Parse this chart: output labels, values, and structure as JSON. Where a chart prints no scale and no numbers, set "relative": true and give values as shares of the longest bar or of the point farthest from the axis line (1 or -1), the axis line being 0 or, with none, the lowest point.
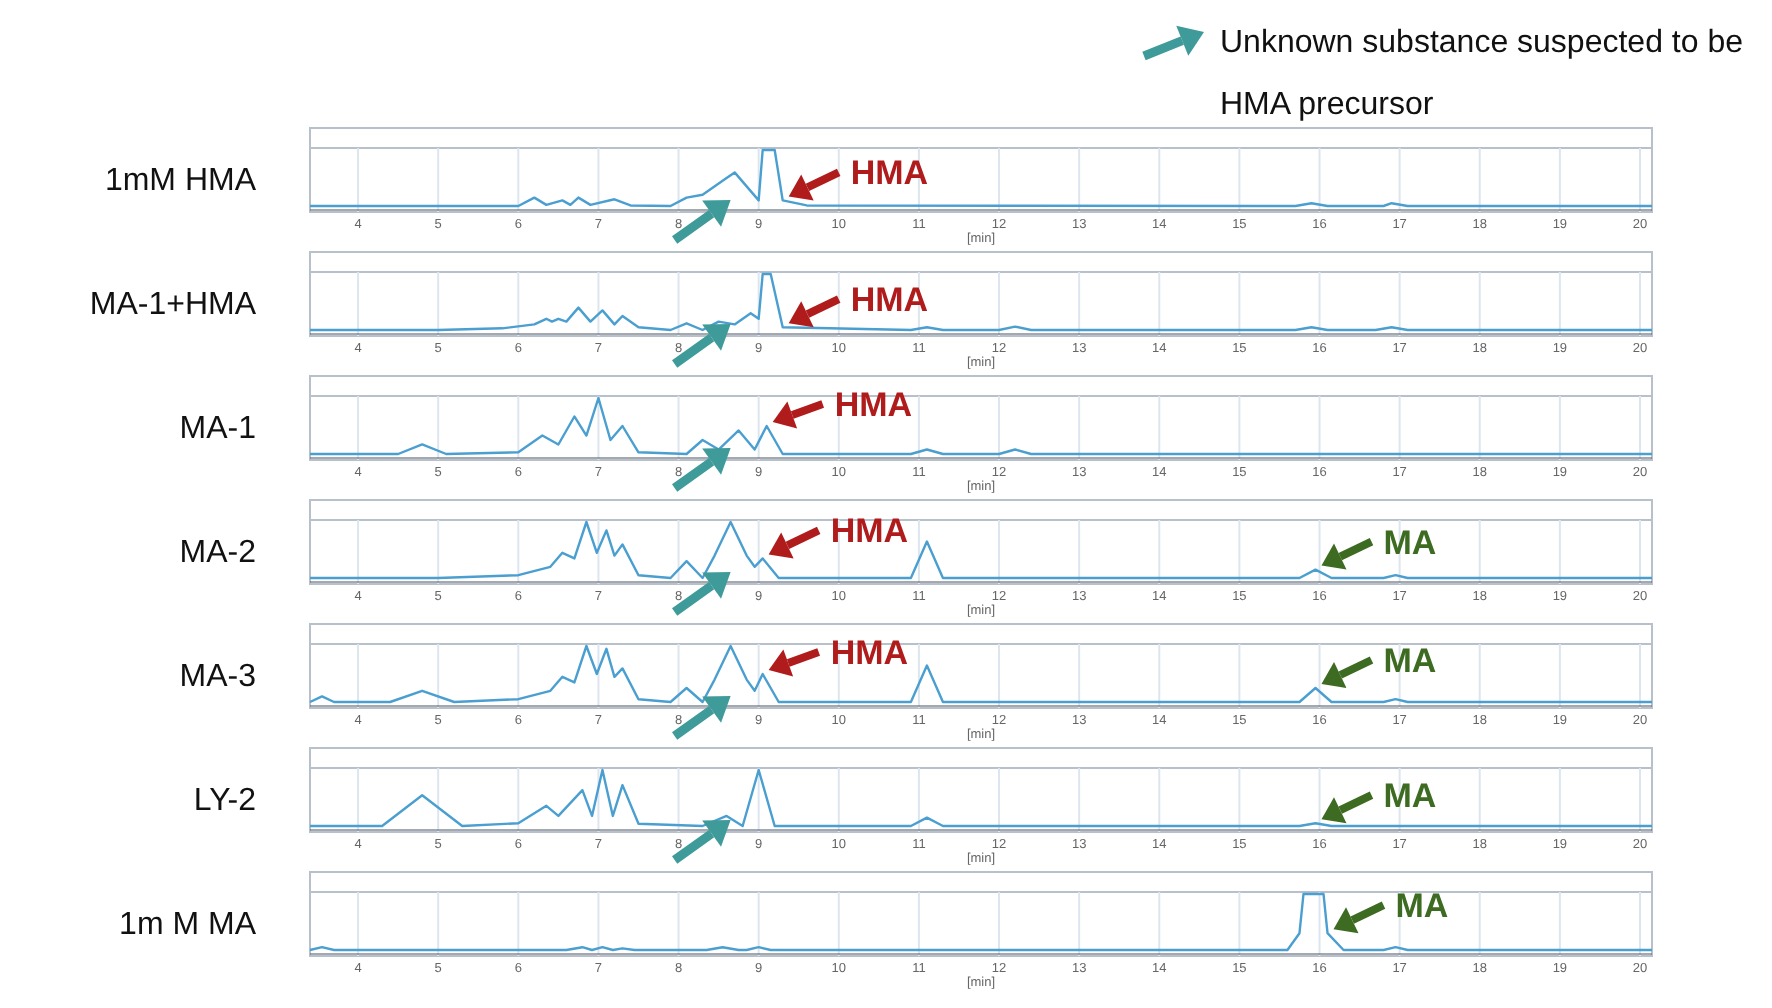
{
  "chart_data": [
    {
      "type": "line",
      "ylabel": "1mM HMA",
      "xlabel": "[min]",
      "relative": true,
      "xlim": [
        3.4,
        20.15
      ],
      "xticks": [
        4,
        5,
        6,
        7,
        8,
        9,
        10,
        11,
        12,
        13,
        14,
        15,
        16,
        17,
        18,
        19,
        20
      ],
      "grid": "x",
      "annotations": [
        "Unknown substance suspected to be HMA precursor",
        {
          "text": "HMA",
          "x": 9.3,
          "y": 0.1
        }
      ],
      "series": [
        {
          "color": "#4a9fd0",
          "x": [
            3.4,
            6.0,
            6.2,
            6.35,
            6.55,
            6.65,
            6.75,
            6.9,
            7.2,
            7.4,
            7.9,
            8.1,
            8.3,
            8.55,
            8.7,
            8.85,
            9.0,
            9.05,
            9.2,
            9.3,
            9.6,
            15.7,
            15.9,
            16.1,
            16.8,
            16.9,
            17.1,
            20.15
          ],
          "values": [
            0,
            0,
            0.15,
            0.02,
            0.1,
            0.02,
            0.15,
            0.02,
            0.12,
            0.01,
            0,
            0.15,
            0.2,
            0.45,
            0.6,
            0.35,
            0.1,
            1,
            1,
            0.1,
            0.01,
            0,
            0.05,
            0,
            0,
            0.05,
            0,
            0
          ]
        }
      ]
    },
    {
      "type": "line",
      "ylabel": "MA-1+HMA",
      "xlabel": "[min]",
      "relative": true,
      "xlim": [
        3.4,
        20.15
      ],
      "xticks": [
        4,
        5,
        6,
        7,
        8,
        9,
        10,
        11,
        12,
        13,
        14,
        15,
        16,
        17,
        18,
        19,
        20
      ],
      "grid": "x",
      "annotations": [
        {
          "text": "HMA",
          "x": 9.3,
          "y": 0.05
        }
      ],
      "series": [
        {
          "color": "#4a9fd0",
          "x": [
            3.4,
            5.0,
            5.8,
            6.2,
            6.35,
            6.42,
            6.5,
            6.6,
            6.75,
            6.9,
            7.05,
            7.2,
            7.3,
            7.5,
            7.9,
            8.1,
            8.3,
            8.5,
            8.7,
            8.9,
            9.0,
            9.05,
            9.15,
            9.3,
            10.9,
            11.1,
            11.3,
            12.0,
            12.2,
            12.4,
            15.7,
            15.9,
            16.1,
            16.7,
            16.9,
            17.1,
            20.15
          ],
          "values": [
            0,
            0,
            0.03,
            0.1,
            0.2,
            0.15,
            0.2,
            0.15,
            0.4,
            0.15,
            0.35,
            0.1,
            0.25,
            0.05,
            0,
            0.12,
            0,
            0.15,
            0.1,
            0.3,
            0.2,
            1,
            1,
            0.05,
            0,
            0.05,
            0,
            0,
            0.06,
            0,
            0,
            0.05,
            0,
            0,
            0.05,
            0,
            0
          ]
        }
      ]
    },
    {
      "type": "line",
      "ylabel": "MA-1",
      "xlabel": "[min]",
      "relative": true,
      "xlim": [
        3.4,
        20.15
      ],
      "xticks": [
        4,
        5,
        6,
        7,
        8,
        9,
        10,
        11,
        12,
        13,
        14,
        15,
        16,
        17,
        18,
        19,
        20
      ],
      "grid": "x",
      "annotations": [
        {
          "text": "HMA",
          "x": 9.1,
          "y": 0.5
        }
      ],
      "series": [
        {
          "color": "#4a9fd0",
          "x": [
            3.4,
            4.5,
            4.8,
            5.1,
            6.0,
            6.3,
            6.5,
            6.7,
            6.85,
            7.0,
            7.15,
            7.3,
            7.5,
            8.1,
            8.3,
            8.5,
            8.75,
            8.95,
            9.1,
            9.3,
            10.9,
            11.1,
            11.3,
            12.0,
            12.2,
            12.4,
            20.15
          ],
          "values": [
            0,
            0,
            0.17,
            0,
            0.03,
            0.33,
            0.17,
            0.67,
            0.33,
            1,
            0.25,
            0.5,
            0.03,
            0,
            0.25,
            0.08,
            0.42,
            0.08,
            0.5,
            0,
            0,
            0.08,
            0,
            0,
            0.08,
            0,
            0
          ]
        }
      ]
    },
    {
      "type": "line",
      "ylabel": "MA-2",
      "xlabel": "[min]",
      "relative": true,
      "xlim": [
        3.4,
        20.15
      ],
      "xticks": [
        4,
        5,
        6,
        7,
        8,
        9,
        10,
        11,
        12,
        13,
        14,
        15,
        16,
        17,
        18,
        19,
        20
      ],
      "grid": "x",
      "annotations": [
        {
          "text": "HMA",
          "x": 9.05,
          "y": 0.35
        },
        {
          "text": "MA",
          "x": 15.95,
          "y": 0.15
        }
      ],
      "series": [
        {
          "color": "#4a9fd0",
          "x": [
            3.4,
            5.0,
            6.0,
            6.4,
            6.55,
            6.7,
            6.85,
            6.98,
            7.1,
            7.2,
            7.3,
            7.5,
            7.9,
            8.1,
            8.3,
            8.45,
            8.65,
            8.85,
            8.95,
            9.05,
            9.25,
            10.9,
            11.1,
            11.3,
            15.75,
            15.95,
            16.15,
            16.8,
            16.95,
            17.1,
            20.15
          ],
          "values": [
            0,
            0,
            0.05,
            0.2,
            0.45,
            0.35,
            1,
            0.45,
            0.85,
            0.4,
            0.6,
            0.05,
            0,
            0.3,
            0,
            0.4,
            1,
            0.4,
            0.2,
            0.35,
            0,
            0,
            0.65,
            0,
            0,
            0.15,
            0,
            0,
            0.05,
            0,
            0
          ]
        }
      ]
    },
    {
      "type": "line",
      "ylabel": "MA-3",
      "xlabel": "[min]",
      "relative": true,
      "xlim": [
        3.4,
        20.15
      ],
      "xticks": [
        4,
        5,
        6,
        7,
        8,
        9,
        10,
        11,
        12,
        13,
        14,
        15,
        16,
        17,
        18,
        19,
        20
      ],
      "grid": "x",
      "annotations": [
        {
          "text": "HMA",
          "x": 9.05,
          "y": 0.5
        },
        {
          "text": "MA",
          "x": 15.95,
          "y": 0.25
        }
      ],
      "series": [
        {
          "color": "#4a9fd0",
          "x": [
            3.4,
            3.55,
            3.7,
            4.4,
            4.8,
            5.2,
            6.0,
            6.4,
            6.55,
            6.7,
            6.85,
            6.98,
            7.1,
            7.2,
            7.3,
            7.5,
            7.9,
            8.1,
            8.3,
            8.45,
            8.65,
            8.85,
            8.95,
            9.05,
            9.25,
            10.9,
            11.1,
            11.3,
            15.75,
            15.95,
            16.15,
            16.8,
            16.95,
            17.1,
            20.15
          ],
          "values": [
            0,
            0.1,
            0,
            0,
            0.2,
            0,
            0.05,
            0.2,
            0.45,
            0.35,
            1,
            0.5,
            0.95,
            0.45,
            0.6,
            0.05,
            0,
            0.25,
            0,
            0.4,
            1,
            0.4,
            0.2,
            0.5,
            0,
            0,
            0.65,
            0,
            0,
            0.25,
            0,
            0,
            0.05,
            0,
            0
          ]
        }
      ]
    },
    {
      "type": "line",
      "ylabel": "LY-2",
      "xlabel": "[min]",
      "relative": true,
      "xlim": [
        3.4,
        20.15
      ],
      "xticks": [
        4,
        5,
        6,
        7,
        8,
        9,
        10,
        11,
        12,
        13,
        14,
        15,
        16,
        17,
        18,
        19,
        20
      ],
      "grid": "x",
      "annotations": [
        {
          "text": "MA",
          "x": 15.95,
          "y": 0.05
        }
      ],
      "series": [
        {
          "color": "#4a9fd0",
          "x": [
            3.4,
            4.3,
            4.8,
            5.3,
            6.0,
            6.35,
            6.5,
            6.8,
            6.92,
            7.05,
            7.18,
            7.3,
            7.5,
            8.3,
            8.6,
            8.8,
            9.0,
            9.2,
            10.9,
            11.1,
            11.3,
            15.75,
            15.95,
            16.15,
            20.15
          ],
          "values": [
            0,
            0,
            0.55,
            0,
            0.05,
            0.36,
            0.18,
            0.64,
            0.18,
            1,
            0.18,
            0.73,
            0.04,
            0,
            0.18,
            0,
            1,
            0,
            0,
            0.15,
            0,
            0,
            0.05,
            0,
            0
          ]
        }
      ]
    },
    {
      "type": "line",
      "ylabel": "1m M MA",
      "xlabel": "[min]",
      "relative": true,
      "xlim": [
        3.4,
        20.15
      ],
      "xticks": [
        4,
        5,
        6,
        7,
        8,
        9,
        10,
        11,
        12,
        13,
        14,
        15,
        16,
        17,
        18,
        19,
        20
      ],
      "grid": "x",
      "annotations": [
        {
          "text": "MA",
          "x": 16.1,
          "y": 0.3
        }
      ],
      "series": [
        {
          "color": "#4a9fd0",
          "x": [
            3.4,
            3.55,
            3.7,
            6.6,
            6.8,
            6.92,
            7.05,
            7.18,
            7.3,
            7.45,
            8.35,
            8.55,
            8.75,
            8.85,
            9.0,
            9.15,
            15.6,
            15.75,
            15.8,
            16.05,
            16.1,
            16.3,
            16.8,
            16.95,
            17.1,
            20.15
          ],
          "values": [
            0,
            0.05,
            0,
            0,
            0.05,
            0,
            0.05,
            0,
            0.03,
            0,
            0,
            0.05,
            0,
            0,
            0.05,
            0,
            0,
            0.3,
            1,
            1,
            0.3,
            0,
            0,
            0.05,
            0,
            0
          ]
        }
      ]
    }
  ]
}
